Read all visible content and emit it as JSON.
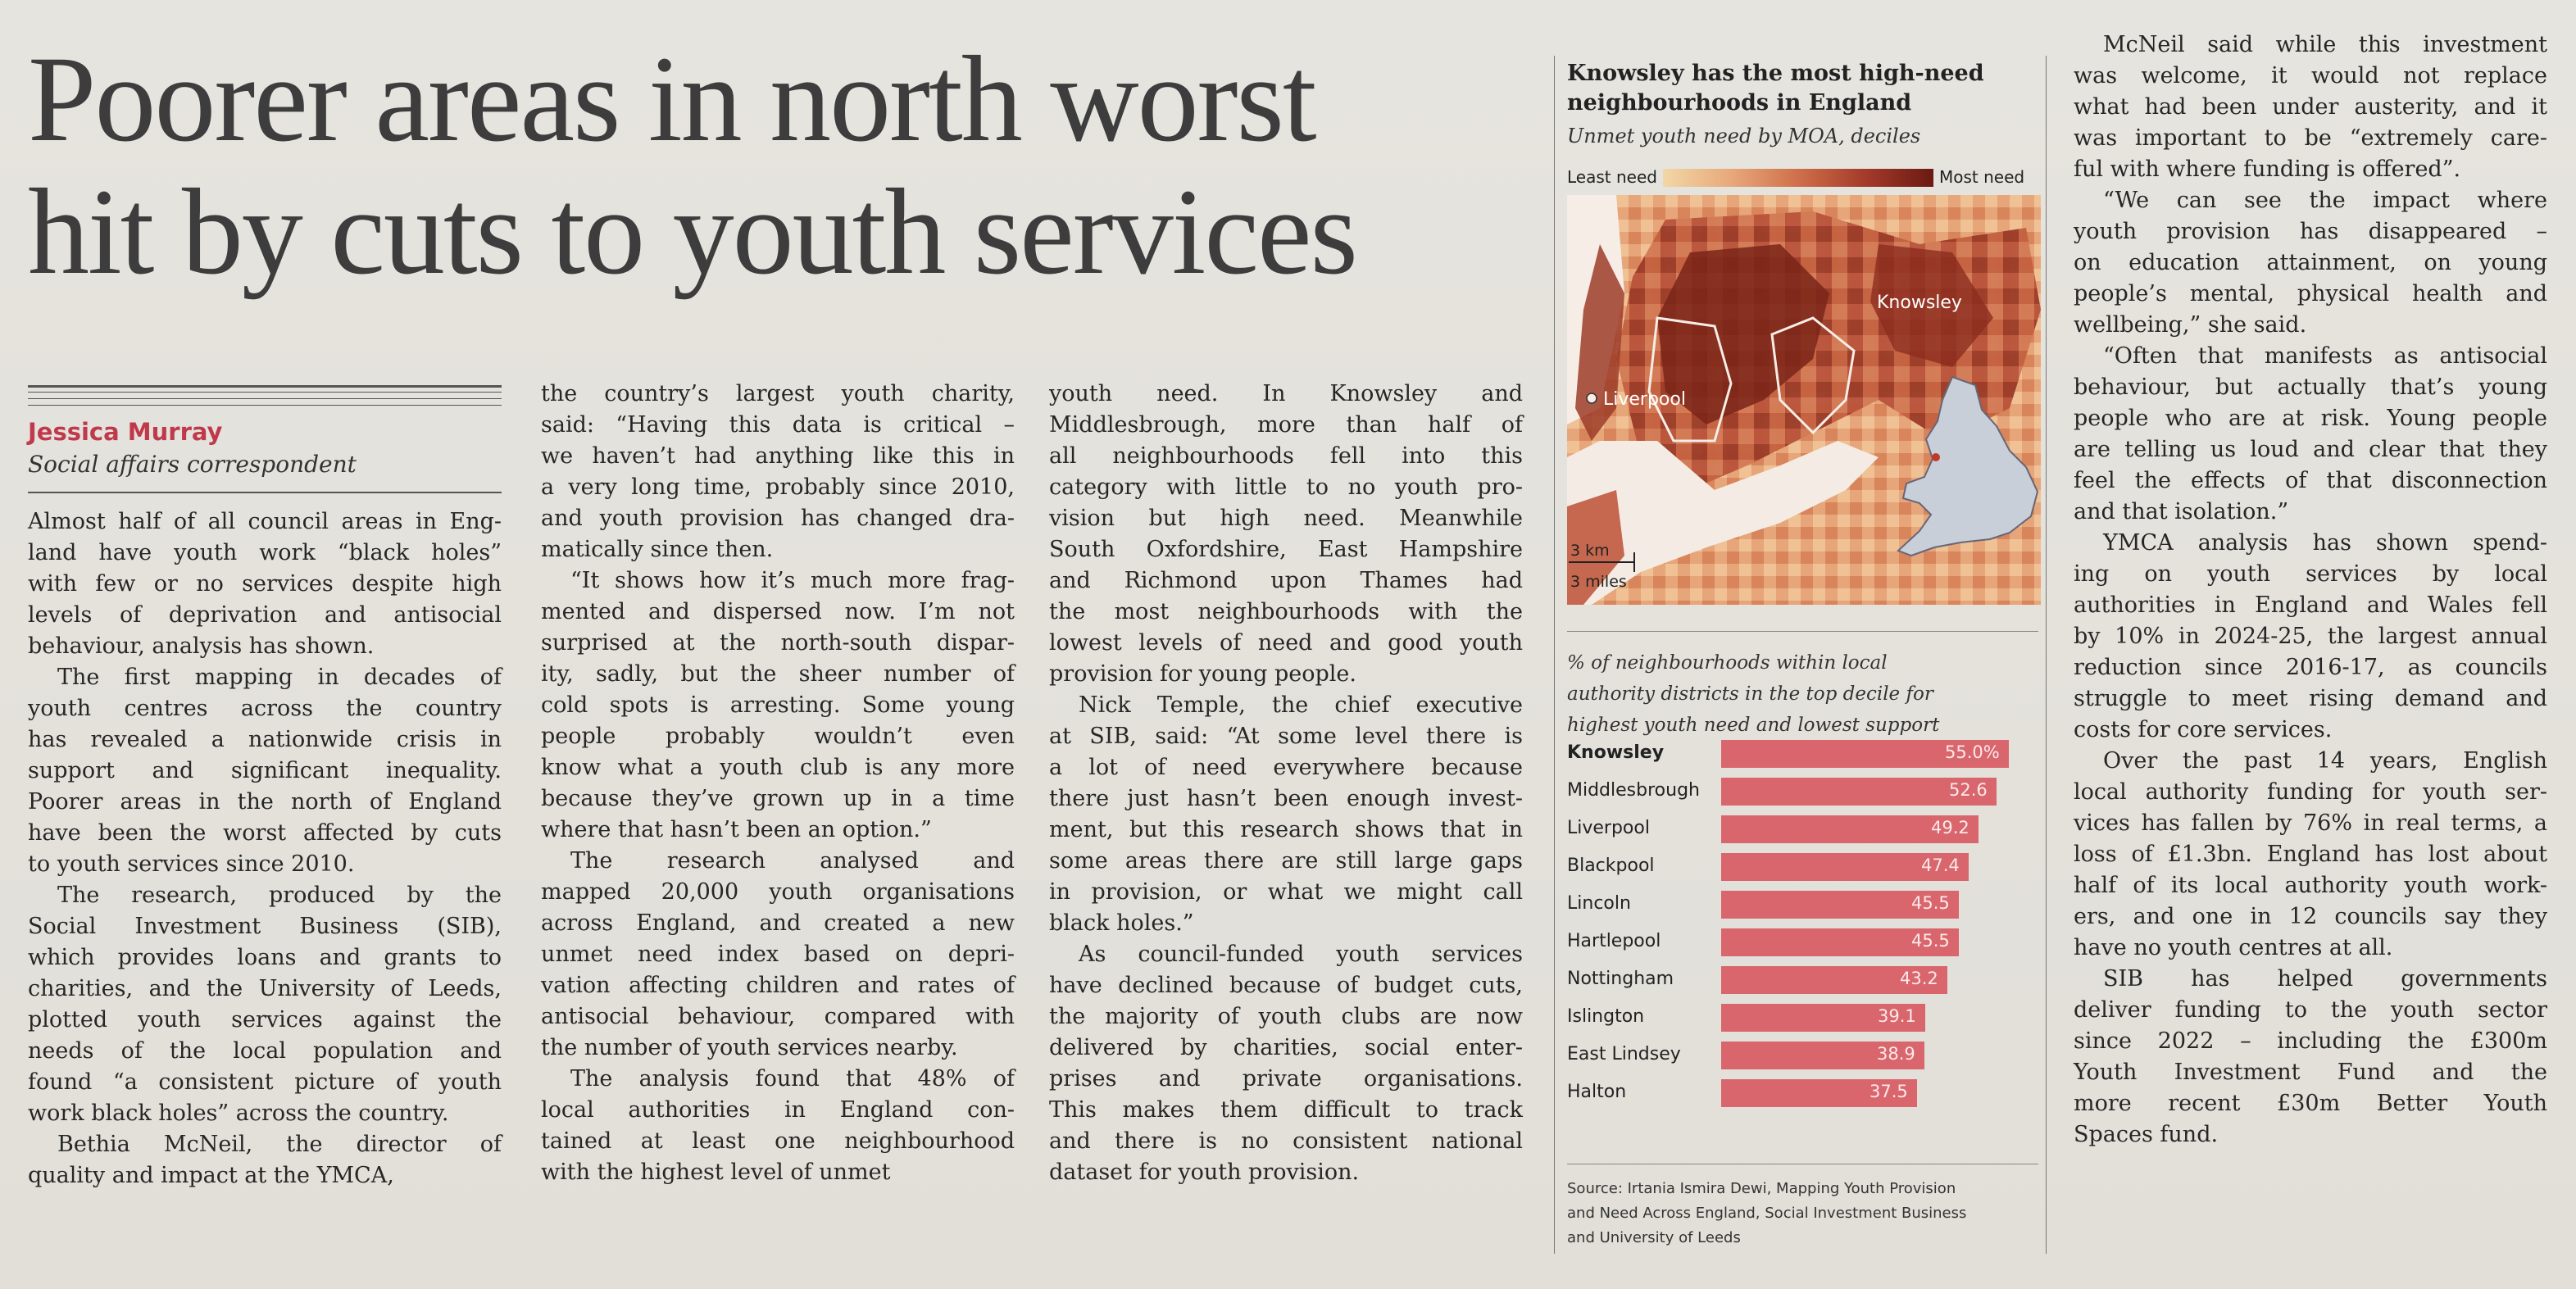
{
  "headline": {
    "line1": "Poorer areas in north worst",
    "line2": "hit by cuts to youth services"
  },
  "byline": {
    "name": "Jessica Murray",
    "role": "Social affairs correspondent"
  },
  "columns": {
    "col1": [
      {
        "indent": false,
        "lines": [
          "Almost half of all council areas in Eng-",
          "land have youth work “black holes”",
          "with few or no services despite high",
          "levels of deprivation and antisocial",
          "behaviour, analysis has shown."
        ]
      },
      {
        "indent": true,
        "lines": [
          "The first mapping in decades of",
          "youth centres across the country",
          "has revealed a nationwide crisis in",
          "support and significant inequality.",
          "Poorer areas in the north of England",
          "have been the worst affected by cuts",
          "to youth services since 2010."
        ]
      },
      {
        "indent": true,
        "lines": [
          "The research, produced by the",
          "Social Investment Business (SIB),",
          "which provides loans and grants to",
          "charities, and the University of Leeds,",
          "plotted youth services against the",
          "needs of the local population and",
          "found “a consistent picture of youth",
          "work black holes” across the country."
        ]
      },
      {
        "indent": true,
        "lines": [
          "Bethia McNeil, the director of",
          "quality and impact at the YMCA,"
        ]
      }
    ],
    "col2": [
      {
        "indent": false,
        "lines": [
          "the country’s largest youth charity,",
          "said: “Having this data is critical –",
          "we haven’t had anything like this in",
          "a very long time, probably since 2010,",
          "and youth provision has changed dra-",
          "matically since then."
        ]
      },
      {
        "indent": true,
        "lines": [
          "“It shows how it’s much more frag-",
          "mented and dispersed now. I’m not",
          "surprised at the north-south dispar-",
          "ity, sadly, but the sheer number of",
          "cold spots is arresting. Some young",
          "people probably wouldn’t even",
          "know what a youth club is any more",
          "because they’ve grown up in a time",
          "where that hasn’t been an option.”"
        ]
      },
      {
        "indent": true,
        "lines": [
          "The research analysed and",
          "mapped 20,000 youth organisations",
          "across England, and created a new",
          "unmet need index based on depri-",
          "vation affecting children and rates of",
          "antisocial behaviour, compared with",
          "the number of youth services nearby."
        ]
      },
      {
        "indent": true,
        "lines": [
          "The analysis found that 48% of",
          "local authorities in England con-",
          "tained at least one neighbourhood",
          "with the highest level of unmet"
        ]
      }
    ],
    "col3": [
      {
        "indent": false,
        "lines": [
          "youth need. In Knowsley and",
          "Middlesbrough, more than half of",
          "all neighbourhoods fell into this",
          "category with little to no youth pro-",
          "vision but high need. Meanwhile",
          "South Oxfordshire, East Hampshire",
          "and Richmond upon Thames had",
          "the most neighbourhoods with the",
          "lowest levels of need and good youth",
          "provision for young people."
        ]
      },
      {
        "indent": true,
        "lines": [
          "Nick Temple, the chief executive",
          "at SIB, said: “At some level there is",
          "a lot of need everywhere because",
          "there just hasn’t been enough invest-",
          "ment, but this research shows that in",
          "some areas there are still large gaps",
          "in provision, or what we might call",
          "black holes.”"
        ]
      },
      {
        "indent": true,
        "lines": [
          "As council-funded youth services",
          "have declined because of budget cuts,",
          "the majority of youth clubs are now",
          "delivered by charities, social enter-",
          "prises and private organisations.",
          "This makes them difficult to track",
          "and there is no consistent national",
          "dataset for youth provision."
        ]
      }
    ],
    "col4": [
      {
        "indent": true,
        "lines": [
          "McNeil said while this investment",
          "was welcome, it would not replace",
          "what had been under austerity, and it",
          "was important to be “extremely care-",
          "ful with where funding is offered”."
        ]
      },
      {
        "indent": true,
        "lines": [
          "“We can see the impact where",
          "youth provision has disappeared –",
          "on education attainment, on young",
          "people’s mental, physical health and",
          "wellbeing,” she said."
        ]
      },
      {
        "indent": true,
        "lines": [
          "“Often that manifests as antisocial",
          "behaviour, but actually that’s young",
          "people who are at risk. Young people",
          "are telling us loud and clear that they",
          "feel the effects of that disconnection",
          "and that isolation.”"
        ]
      },
      {
        "indent": true,
        "lines": [
          "YMCA analysis has shown spend-",
          "ing on youth services by local",
          "authorities in England and Wales fell",
          "by 10% in 2024-25, the largest annual",
          "reduction since 2016-17, as councils",
          "struggle to meet rising demand and",
          "costs for core services."
        ]
      },
      {
        "indent": true,
        "lines": [
          "Over the past 14 years, English",
          "local authority funding for youth ser-",
          "vices has fallen by 76% in real terms, a",
          "loss of £1.3bn. England has lost about",
          "half of its local authority youth work-",
          "ers, and one in 12 councils say they",
          "have no youth centres at all."
        ]
      },
      {
        "indent": true,
        "lines": [
          "SIB has helped governments",
          "deliver funding to the youth sector",
          "since 2022 – including the £300m",
          "Youth Investment Fund and the",
          "more recent £30m Better Youth",
          "Spaces fund."
        ]
      }
    ]
  },
  "graphic": {
    "title_line1": "Knowsley has the most high-need",
    "title_line2": "neighbourhoods in England",
    "subtitle": "Unmet youth need by MOA, deciles",
    "legend_least": "Least need",
    "legend_most": "Most need",
    "map_label_knowsley": "Knowsley",
    "map_label_liverpool": "Liverpool",
    "scale_km": "3 km",
    "scale_miles": "3 miles",
    "bar_caption_lines": [
      "% of neighbourhoods within local",
      "authority districts in the top decile for",
      "highest youth need and lowest support"
    ],
    "source_lines": [
      "Source: Irtania Ismira Dewi, Mapping Youth Provision",
      "and Need Across England, Social Investment Business",
      "and University of Leeds"
    ],
    "colors": {
      "bar": "#d9666d",
      "accent": "#c0394b"
    }
  },
  "chart_data": {
    "type": "bar",
    "orientation": "horizontal",
    "title": "Knowsley has the most high-need neighbourhoods in England",
    "categories": [
      "Knowsley",
      "Middlesbrough",
      "Liverpool",
      "Blackpool",
      "Lincoln",
      "Hartlepool",
      "Nottingham",
      "Islington",
      "East Lindsey",
      "Halton"
    ],
    "values": [
      55.0,
      52.6,
      49.2,
      47.4,
      45.5,
      45.5,
      43.2,
      39.1,
      38.9,
      37.5
    ],
    "value_labels": [
      "55.0%",
      "52.6",
      "49.2",
      "47.4",
      "45.5",
      "45.5",
      "43.2",
      "39.1",
      "38.9",
      "37.5"
    ],
    "xlim": [
      0,
      58
    ]
  }
}
